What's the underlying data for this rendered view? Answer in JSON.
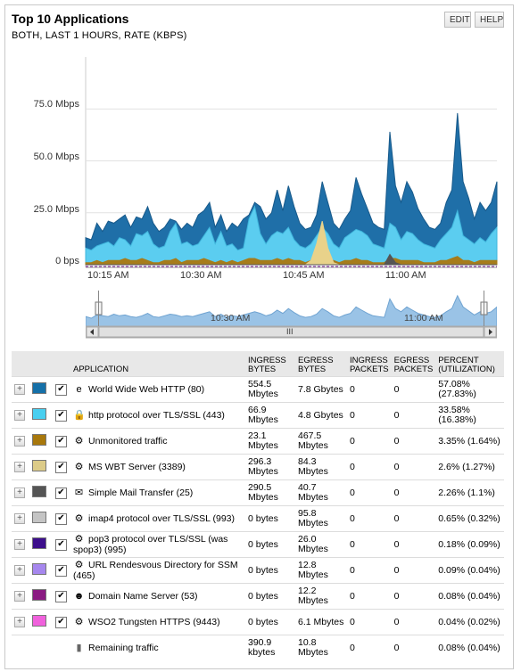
{
  "header": {
    "title": "Top 10 Applications",
    "subtitle": "BOTH, LAST 1 HOURS, RATE (KBPS)",
    "edit_label": "EDIT",
    "help_label": "HELP"
  },
  "chart_data": {
    "type": "area",
    "y_ticks": [
      "75.0 Mbps",
      "50.0 Mbps",
      "25.0 Mbps",
      "0 bps"
    ],
    "x_ticks": [
      "10:15 AM",
      "10:30 AM",
      "10:45 AM",
      "11:00 AM"
    ],
    "ylim": [
      0,
      100
    ],
    "series": [
      {
        "color": "#1f6fa8",
        "values": [
          13,
          12,
          20,
          16,
          21,
          20,
          22,
          24,
          18,
          23,
          22,
          28,
          20,
          16,
          18,
          22,
          21,
          17,
          20,
          18,
          24,
          26,
          30,
          18,
          24,
          16,
          20,
          18,
          22,
          24,
          30,
          28,
          22,
          25,
          36,
          26,
          38,
          28,
          20,
          17,
          18,
          24,
          40,
          30,
          20,
          17,
          22,
          26,
          42,
          34,
          27,
          20,
          18,
          17,
          64,
          38,
          30,
          40,
          35,
          27,
          22,
          18,
          17,
          20,
          30,
          36,
          73,
          40,
          32,
          22,
          30,
          26,
          30,
          40
        ]
      },
      {
        "color": "#5bcdf0",
        "values": [
          8,
          7,
          9,
          10,
          11,
          9,
          13,
          12,
          9,
          15,
          14,
          16,
          10,
          8,
          9,
          16,
          20,
          10,
          11,
          9,
          10,
          14,
          18,
          10,
          16,
          9,
          10,
          7,
          8,
          22,
          28,
          15,
          10,
          14,
          16,
          15,
          18,
          12,
          9,
          8,
          10,
          14,
          18,
          15,
          10,
          8,
          13,
          15,
          17,
          16,
          14,
          10,
          9,
          8,
          20,
          18,
          12,
          16,
          15,
          12,
          10,
          9,
          8,
          12,
          15,
          18,
          26,
          14,
          12,
          10,
          13,
          11,
          15,
          18
        ]
      },
      {
        "color": "#a67c1b",
        "values": [
          1,
          1,
          2,
          1,
          2,
          2,
          2,
          3,
          2,
          2,
          3,
          2,
          1,
          1,
          2,
          2,
          3,
          1,
          2,
          2,
          2,
          3,
          2,
          1,
          2,
          1,
          2,
          1,
          2,
          3,
          3,
          2,
          2,
          2,
          3,
          2,
          3,
          2,
          2,
          1,
          2,
          2,
          3,
          2,
          2,
          1,
          2,
          2,
          3,
          2,
          2,
          1,
          1,
          1,
          3,
          3,
          2,
          2,
          2,
          2,
          1,
          1,
          1,
          2,
          2,
          3,
          4,
          2,
          2,
          1,
          2,
          2,
          2,
          2
        ]
      },
      {
        "color": "#e8d28a",
        "values": [
          0,
          0,
          0,
          0,
          0,
          0,
          0,
          0,
          0,
          0,
          0,
          0,
          0,
          0,
          0,
          0,
          0,
          0,
          0,
          0,
          0,
          0,
          0,
          0,
          0,
          0,
          0,
          0,
          0,
          0,
          0,
          0,
          0,
          0,
          0,
          0,
          0,
          0,
          0,
          0,
          2,
          10,
          21,
          8,
          1,
          0,
          0,
          0,
          0,
          0,
          0,
          0,
          0,
          0,
          0,
          0,
          0,
          0,
          0,
          0,
          0,
          0,
          0,
          0,
          0,
          0,
          0,
          0,
          0,
          0,
          0,
          0,
          0,
          0
        ]
      },
      {
        "color": "#555555",
        "values": [
          0,
          0,
          0,
          0,
          0,
          0,
          0,
          0,
          0,
          0,
          0,
          0,
          0,
          0,
          0,
          0,
          0,
          0,
          0,
          0,
          0,
          0,
          0,
          0,
          0,
          0,
          0,
          0,
          0,
          0,
          0,
          0,
          0,
          0,
          0,
          0,
          0,
          0,
          0,
          0,
          0,
          0,
          0,
          0,
          0,
          0,
          0,
          0,
          0,
          0,
          0,
          0,
          0,
          0,
          5,
          1,
          0,
          0,
          0,
          0,
          0,
          0,
          0,
          0,
          0,
          0,
          0,
          0,
          0,
          0,
          0,
          0,
          0,
          0
        ]
      }
    ],
    "nav_values": [
      12,
      10,
      14,
      13,
      12,
      15,
      13,
      14,
      12,
      11,
      13,
      16,
      12,
      11,
      13,
      15,
      14,
      12,
      13,
      12,
      14,
      16,
      18,
      12,
      15,
      11,
      13,
      12,
      14,
      16,
      18,
      16,
      13,
      15,
      20,
      16,
      22,
      17,
      13,
      11,
      12,
      15,
      22,
      18,
      13,
      11,
      14,
      16,
      24,
      20,
      16,
      13,
      12,
      11,
      34,
      22,
      18,
      24,
      20,
      16,
      14,
      12,
      11,
      13,
      18,
      22,
      38,
      24,
      19,
      14,
      18,
      16,
      18,
      24
    ]
  },
  "navigator": {
    "ticks": [
      "10:30 AM",
      "11:00 AM"
    ],
    "handle": "III"
  },
  "table": {
    "headers": [
      "APPLICATION",
      "INGRESS BYTES",
      "EGRESS BYTES",
      "INGRESS PACKETS",
      "EGRESS PACKETS",
      "PERCENT (UTILIZATION)"
    ],
    "rows": [
      {
        "color": "#1570a8",
        "icon": "ie-icon",
        "glyph": "e",
        "app": "World Wide Web HTTP (80)",
        "ib": "554.5 Mbytes",
        "eb": "7.8 Gbytes",
        "ip": "0",
        "ep": "0",
        "pct": "57.08% (27.83%)"
      },
      {
        "color": "#48cff0",
        "icon": "lock-icon",
        "glyph": "🔒",
        "app": "http protocol over TLS/SSL (443)",
        "ib": "66.9 Mbytes",
        "eb": "4.8 Gbytes",
        "ip": "0",
        "ep": "0",
        "pct": "33.58% (16.38%)"
      },
      {
        "color": "#a8780c",
        "icon": "gears-icon",
        "glyph": "⚙",
        "app": "Unmonitored traffic",
        "ib": "23.1 Mbytes",
        "eb": "467.5 Mbytes",
        "ip": "0",
        "ep": "0",
        "pct": "3.35% (1.64%)"
      },
      {
        "color": "#dccb88",
        "icon": "gears-icon",
        "glyph": "⚙",
        "app": "MS WBT Server (3389)",
        "ib": "296.3 Mbytes",
        "eb": "84.3 Mbytes",
        "ip": "0",
        "ep": "0",
        "pct": "2.6% (1.27%)"
      },
      {
        "color": "#555555",
        "icon": "envelope-icon",
        "glyph": "✉",
        "app": "Simple Mail Transfer (25)",
        "ib": "290.5 Mbytes",
        "eb": "40.7 Mbytes",
        "ip": "0",
        "ep": "0",
        "pct": "2.26% (1.1%)"
      },
      {
        "color": "#c4c4c4",
        "icon": "gears-icon",
        "glyph": "⚙",
        "app": "imap4 protocol over TLS/SSL (993)",
        "ib": "0 bytes",
        "eb": "95.8 Mbytes",
        "ip": "0",
        "ep": "0",
        "pct": "0.65% (0.32%)"
      },
      {
        "color": "#3d0f8c",
        "icon": "gears-icon",
        "glyph": "⚙",
        "app": "pop3 protocol over TLS/SSL (was spop3) (995)",
        "ib": "0 bytes",
        "eb": "26.0 Mbytes",
        "ip": "0",
        "ep": "0",
        "pct": "0.18% (0.09%)"
      },
      {
        "color": "#a687ee",
        "icon": "gears-icon",
        "glyph": "⚙",
        "app": "URL Rendesvous Directory for SSM (465)",
        "ib": "0 bytes",
        "eb": "12.8 Mbytes",
        "ip": "0",
        "ep": "0",
        "pct": "0.09% (0.04%)"
      },
      {
        "color": "#8a1a82",
        "icon": "dns-icon",
        "glyph": "☻",
        "app": "Domain Name Server (53)",
        "ib": "0 bytes",
        "eb": "12.2 Mbytes",
        "ip": "0",
        "ep": "0",
        "pct": "0.08% (0.04%)"
      },
      {
        "color": "#f061dc",
        "icon": "gears-icon",
        "glyph": "⚙",
        "app": "WSO2 Tungsten HTTPS (9443)",
        "ib": "0 bytes",
        "eb": "6.1 Mbytes",
        "ip": "0",
        "ep": "0",
        "pct": "0.04% (0.02%)"
      }
    ],
    "remaining": {
      "icon": "bar-chart-icon",
      "glyph": "▮",
      "app": "Remaining traffic",
      "ib": "390.9 kbytes",
      "eb": "10.8 Mbytes",
      "ip": "0",
      "ep": "0",
      "pct": "0.08% (0.04%)"
    }
  }
}
